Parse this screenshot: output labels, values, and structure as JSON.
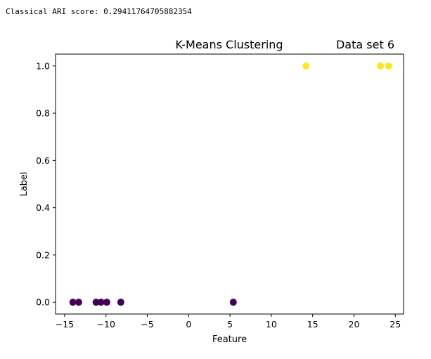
{
  "score_text": "Classical ARI score: 0.29411764705882354",
  "chart_data": {
    "type": "scatter",
    "title": "K-Means Clustering",
    "title_right": "Data set 6",
    "xlabel": "Feature",
    "ylabel": "Label",
    "xlim": [
      -16.1,
      26.0
    ],
    "ylim": [
      -0.05,
      1.05
    ],
    "xticks": [
      -15,
      -10,
      -5,
      0,
      5,
      10,
      15,
      20,
      25
    ],
    "yticks": [
      0.0,
      0.2,
      0.4,
      0.6,
      0.8,
      1.0
    ],
    "xtick_labels": [
      "−15",
      "−10",
      "−5",
      "0",
      "5",
      "10",
      "15",
      "20",
      "25"
    ],
    "ytick_labels": [
      "0.0",
      "0.2",
      "0.4",
      "0.6",
      "0.8",
      "1.0"
    ],
    "points": [
      {
        "x": -14.0,
        "y": 0,
        "cluster": 0
      },
      {
        "x": -13.3,
        "y": 0,
        "cluster": 0
      },
      {
        "x": -11.2,
        "y": 0,
        "cluster": 0
      },
      {
        "x": -10.6,
        "y": 0,
        "cluster": 0
      },
      {
        "x": -9.9,
        "y": 0,
        "cluster": 0
      },
      {
        "x": -8.2,
        "y": 0,
        "cluster": 0
      },
      {
        "x": 5.4,
        "y": 0,
        "cluster": 0
      },
      {
        "x": 14.2,
        "y": 1,
        "cluster": 1
      },
      {
        "x": 23.2,
        "y": 1,
        "cluster": 1
      },
      {
        "x": 24.2,
        "y": 1,
        "cluster": 1
      }
    ],
    "cluster_colors": [
      "#440154",
      "#fde725"
    ],
    "grid": false
  }
}
